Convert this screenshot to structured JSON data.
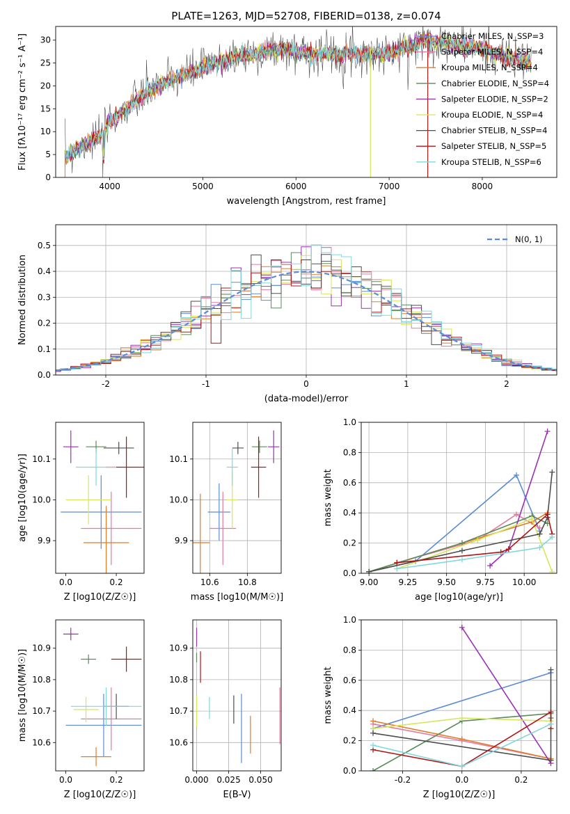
{
  "figure": {
    "title": "PLATE=1263, MJD=52708, FIBERID=0138, z=0.074"
  },
  "chart_data": [
    {
      "id": "spectrum",
      "type": "line",
      "xlabel": "wavelength [Angstrom, rest frame]",
      "ylabel": "Flux [fλ10⁻¹⁷ erg cm⁻² s⁻¹ A⁻¹]",
      "xlim": [
        3420,
        8800
      ],
      "ylim": [
        0,
        33
      ],
      "xticks": [
        4000,
        5000,
        6000,
        7000,
        8000
      ],
      "yticks": [
        0,
        5,
        10,
        15,
        20,
        25,
        30
      ],
      "grid": false,
      "legend_position": "right",
      "continuum": {
        "x": [
          3500,
          3700,
          3900,
          4000,
          4300,
          4500,
          5000,
          5300,
          5800,
          6200,
          6600,
          7000,
          7400,
          8000,
          8500
        ],
        "y": [
          4,
          7,
          9,
          12,
          17,
          20,
          24,
          26,
          28,
          27,
          27,
          27,
          30,
          28,
          25
        ]
      },
      "series": [
        {
          "name": "Chabrier MILES, N_SSP=3",
          "color": "#5b8bd6"
        },
        {
          "name": "Salpeter MILES, N_SSP=4",
          "color": "#e6789e"
        },
        {
          "name": "Kroupa MILES, N_SSP=4",
          "color": "#e07b28"
        },
        {
          "name": "Chabrier ELODIE, N_SSP=4",
          "color": "#5a8a5a"
        },
        {
          "name": "Salpeter ELODIE, N_SSP=2",
          "color": "#9b30b3"
        },
        {
          "name": "Kroupa ELODIE, N_SSP=4",
          "color": "#d6e65a"
        },
        {
          "name": "Chabrier STELIB, N_SSP=4",
          "color": "#4d4d4d"
        },
        {
          "name": "Salpeter STELIB, N_SSP=5",
          "color": "#b01515"
        },
        {
          "name": "Kroupa STELIB, N_SSP=6",
          "color": "#7fd8dc"
        }
      ]
    },
    {
      "id": "residuals",
      "type": "histogram",
      "xlabel": "(data-model)/error",
      "ylabel": "Normed distribution",
      "xlim": [
        -2.5,
        2.5
      ],
      "ylim": [
        0,
        0.58
      ],
      "xticks": [
        -2,
        -1,
        0,
        1,
        2
      ],
      "yticks": [
        0.0,
        0.1,
        0.2,
        0.3,
        0.4,
        0.5
      ],
      "grid": true,
      "legend": "N(0, 1)",
      "legend_position": "top-right",
      "bin_width": 0.1,
      "curve": "normal pdf, mean 0, sd 1"
    },
    {
      "id": "age-vs-Z",
      "type": "scatter",
      "xlabel": "Z [log10(Z/Z☉)]",
      "ylabel": "age [log10(age/yr)]",
      "xlim": [
        -0.04,
        0.31
      ],
      "ylim": [
        9.82,
        10.19
      ],
      "xticks": [
        0.0,
        0.2
      ],
      "yticks": [
        9.9,
        10.0,
        10.1
      ],
      "grid": false,
      "points": [
        {
          "x": 0.14,
          "y": 9.97,
          "xerr": 0.16,
          "yerr": 0.09,
          "color": "#5b8bd6"
        },
        {
          "x": 0.18,
          "y": 9.93,
          "xerr": 0.12,
          "yerr": 0.09,
          "color": "#e6789e"
        },
        {
          "x": 0.16,
          "y": 9.895,
          "xerr": 0.09,
          "yerr": 0.09,
          "color": "#e07b28"
        },
        {
          "x": 0.12,
          "y": 10.13,
          "xerr": 0.04,
          "yerr": 0.015,
          "color": "#5a8a5a"
        },
        {
          "x": 0.02,
          "y": 10.13,
          "xerr": 0.03,
          "yerr": 0.04,
          "color": "#9b30b3"
        },
        {
          "x": 0.09,
          "y": 10.0,
          "xerr": 0.09,
          "yerr": 0.06,
          "color": "#d6e65a"
        },
        {
          "x": 0.21,
          "y": 10.127,
          "xerr": 0.06,
          "yerr": 0.015,
          "color": "#4d4d4d"
        },
        {
          "x": 0.24,
          "y": 10.08,
          "xerr": 0.08,
          "yerr": 0.075,
          "color": "#b01515"
        },
        {
          "x": 0.12,
          "y": 10.08,
          "xerr": 0.08,
          "yerr": 0.045,
          "color": "#7fd8dc"
        }
      ]
    },
    {
      "id": "age-vs-mass",
      "type": "scatter",
      "xlabel": "mass [log10(M/M☉)]",
      "ylabel": "",
      "xlim": [
        10.51,
        10.98
      ],
      "ylim": [
        9.82,
        10.19
      ],
      "xticks": [
        10.6,
        10.8
      ],
      "yticks": [
        9.9,
        10.0,
        10.1
      ],
      "grid": true,
      "points": [
        {
          "x": 10.65,
          "y": 9.97,
          "xerr": 0.06,
          "yerr": 0.07,
          "color": "#5b8bd6"
        },
        {
          "x": 10.67,
          "y": 9.93,
          "xerr": 0.07,
          "yerr": 0.09,
          "color": "#e6789e"
        },
        {
          "x": 10.55,
          "y": 9.895,
          "xerr": 0.05,
          "yerr": 0.12,
          "color": "#e07b28"
        },
        {
          "x": 10.865,
          "y": 10.13,
          "xerr": 0.04,
          "yerr": 0.015,
          "color": "#5a8a5a"
        },
        {
          "x": 10.94,
          "y": 10.13,
          "xerr": 0.03,
          "yerr": 0.04,
          "color": "#9b30b3"
        },
        {
          "x": 10.72,
          "y": 10.0,
          "xerr": 0.03,
          "yerr": 0.07,
          "color": "#d6e65a"
        },
        {
          "x": 10.75,
          "y": 10.127,
          "xerr": 0.03,
          "yerr": 0.015,
          "color": "#4d4d4d"
        },
        {
          "x": 10.86,
          "y": 10.08,
          "xerr": 0.04,
          "yerr": 0.075,
          "color": "#b01515"
        },
        {
          "x": 10.72,
          "y": 10.08,
          "xerr": 0.03,
          "yerr": 0.045,
          "color": "#7fd8dc"
        }
      ]
    },
    {
      "id": "weights-vs-age",
      "type": "line",
      "xlabel": "age [log10(age/yr)]",
      "ylabel": "mass weight",
      "xlim": [
        8.95,
        10.21
      ],
      "ylim": [
        0,
        1
      ],
      "xticks": [
        9.0,
        9.25,
        9.5,
        9.75,
        10.0
      ],
      "yticks": [
        0.0,
        0.2,
        0.4,
        0.6,
        0.8,
        1.0
      ],
      "grid": true,
      "series": [
        {
          "color": "#5b8bd6",
          "x": [
            9.0,
            9.3,
            9.95,
            10.1
          ],
          "y": [
            0.01,
            0.08,
            0.65,
            0.28
          ]
        },
        {
          "color": "#e6789e",
          "x": [
            9.18,
            9.7,
            9.95,
            10.1
          ],
          "y": [
            0.07,
            0.22,
            0.39,
            0.3
          ]
        },
        {
          "color": "#e07b28",
          "x": [
            9.0,
            9.6,
            10.05,
            10.15
          ],
          "y": [
            0.01,
            0.2,
            0.34,
            0.4
          ]
        },
        {
          "color": "#5a8a5a",
          "x": [
            9.0,
            9.6,
            10.05,
            10.15
          ],
          "y": [
            0.01,
            0.2,
            0.38,
            0.33
          ]
        },
        {
          "color": "#9b30b3",
          "x": [
            9.78,
            9.9,
            10.15
          ],
          "y": [
            0.05,
            0.16,
            0.94
          ]
        },
        {
          "color": "#d6e65a",
          "x": [
            9.18,
            9.7,
            10.05,
            10.18
          ],
          "y": [
            0.03,
            0.22,
            0.36,
            0.01
          ]
        },
        {
          "color": "#4d4d4d",
          "x": [
            9.0,
            9.6,
            10.1,
            10.15,
            10.18
          ],
          "y": [
            0.01,
            0.15,
            0.26,
            0.37,
            0.67
          ]
        },
        {
          "color": "#b01515",
          "x": [
            9.18,
            9.85,
            9.9,
            10.15,
            10.18
          ],
          "y": [
            0.07,
            0.14,
            0.16,
            0.39,
            0.26
          ]
        },
        {
          "color": "#7fd8dc",
          "x": [
            9.18,
            9.6,
            10.1,
            10.18
          ],
          "y": [
            0.03,
            0.09,
            0.17,
            0.24
          ]
        }
      ]
    },
    {
      "id": "mass-vs-Z",
      "type": "scatter",
      "xlabel": "Z [log10(Z/Z☉)]",
      "ylabel": "mass [log10(M/M☉)]",
      "xlim": [
        -0.04,
        0.31
      ],
      "ylim": [
        10.51,
        10.99
      ],
      "xticks": [
        0.0,
        0.2
      ],
      "yticks": [
        10.6,
        10.7,
        10.8,
        10.9
      ],
      "grid": false,
      "points": [
        {
          "x": 0.15,
          "y": 10.655,
          "xerr": 0.15,
          "yerr": 0.1,
          "color": "#5b8bd6"
        },
        {
          "x": 0.18,
          "y": 10.675,
          "xerr": 0.12,
          "yerr": 0.1,
          "color": "#e6789e"
        },
        {
          "x": 0.12,
          "y": 10.555,
          "xerr": 0.06,
          "yerr": 0.03,
          "color": "#e07b28"
        },
        {
          "x": 0.09,
          "y": 10.865,
          "xerr": 0.03,
          "yerr": 0.015,
          "color": "#5a8a5a"
        },
        {
          "x": 0.02,
          "y": 10.945,
          "xerr": 0.03,
          "yerr": 0.02,
          "color": "#9b30b3"
        },
        {
          "x": 0.08,
          "y": 10.705,
          "xerr": 0.05,
          "yerr": 0.04,
          "color": "#d6e65a"
        },
        {
          "x": 0.2,
          "y": 10.715,
          "xerr": 0.05,
          "yerr": 0.04,
          "color": "#4d4d4d"
        },
        {
          "x": 0.24,
          "y": 10.865,
          "xerr": 0.06,
          "yerr": 0.04,
          "color": "#b01515"
        },
        {
          "x": 0.16,
          "y": 10.715,
          "xerr": 0.14,
          "yerr": 0.06,
          "color": "#7fd8dc"
        }
      ]
    },
    {
      "id": "mass-vs-EBV",
      "type": "scatter",
      "xlabel": "E(B-V)",
      "ylabel": "",
      "xlim": [
        -0.003,
        0.066
      ],
      "ylim": [
        10.51,
        10.99
      ],
      "xticks": [
        0.0,
        0.025,
        0.05
      ],
      "yticks": [
        10.6,
        10.7,
        10.8,
        10.9
      ],
      "grid": true,
      "points": [
        {
          "x": 0.035,
          "y": 10.645,
          "yerr": 0.11,
          "color": "#5b8bd6"
        },
        {
          "x": 0.065,
          "y": 10.685,
          "yerr": 0.09,
          "color": "#e6789e"
        },
        {
          "x": 0.042,
          "y": 10.625,
          "yerr": 0.06,
          "color": "#e07b28"
        },
        {
          "x": 0.0,
          "y": 10.87,
          "yerr": 0.015,
          "color": "#5a8a5a"
        },
        {
          "x": 0.0,
          "y": 10.935,
          "yerr": 0.03,
          "color": "#9b30b3"
        },
        {
          "x": 0.0,
          "y": 10.7,
          "yerr": 0.05,
          "color": "#d6e65a"
        },
        {
          "x": 0.029,
          "y": 10.705,
          "yerr": 0.045,
          "color": "#4d4d4d"
        },
        {
          "x": 0.003,
          "y": 10.84,
          "yerr": 0.05,
          "color": "#b01515"
        },
        {
          "x": 0.01,
          "y": 10.71,
          "yerr": 0.035,
          "color": "#7fd8dc"
        }
      ]
    },
    {
      "id": "weights-vs-Z",
      "type": "line",
      "xlabel": "Z [log10(Z/Z☉)]",
      "ylabel": "mass weight",
      "xlim": [
        -0.34,
        0.32
      ],
      "ylim": [
        0,
        1
      ],
      "xticks": [
        -0.2,
        0.0,
        0.2
      ],
      "yticks": [
        0.0,
        0.2,
        0.4,
        0.6,
        0.8,
        1.0
      ],
      "grid": true,
      "series": [
        {
          "color": "#5b8bd6",
          "x": [
            -0.3,
            0.3
          ],
          "y": [
            0.28,
            0.65
          ]
        },
        {
          "color": "#e6789e",
          "x": [
            -0.3,
            0.0,
            0.3
          ],
          "y": [
            0.31,
            0.2,
            0.08
          ]
        },
        {
          "color": "#e07b28",
          "x": [
            -0.3,
            0.0,
            0.3
          ],
          "y": [
            0.33,
            0.21,
            0.08
          ]
        },
        {
          "color": "#5a8a5a",
          "x": [
            -0.3,
            0.0,
            0.3,
            0.3
          ],
          "y": [
            0.0,
            0.33,
            0.38,
            0.35
          ]
        },
        {
          "color": "#9b30b3",
          "x": [
            0.0,
            0.3
          ],
          "y": [
            0.95,
            0.05
          ]
        },
        {
          "color": "#d6e65a",
          "x": [
            -0.3,
            0.0,
            0.3
          ],
          "y": [
            0.28,
            0.35,
            0.33
          ]
        },
        {
          "color": "#4d4d4d",
          "x": [
            -0.3,
            0.3,
            0.3
          ],
          "y": [
            0.25,
            0.07,
            0.67
          ]
        },
        {
          "color": "#b01515",
          "x": [
            -0.3,
            0.0,
            0.3,
            0.3
          ],
          "y": [
            0.14,
            0.03,
            0.39,
            0.28
          ]
        },
        {
          "color": "#7fd8dc",
          "x": [
            -0.3,
            0.0,
            0.3
          ],
          "y": [
            0.17,
            0.03,
            0.31
          ]
        }
      ]
    }
  ]
}
